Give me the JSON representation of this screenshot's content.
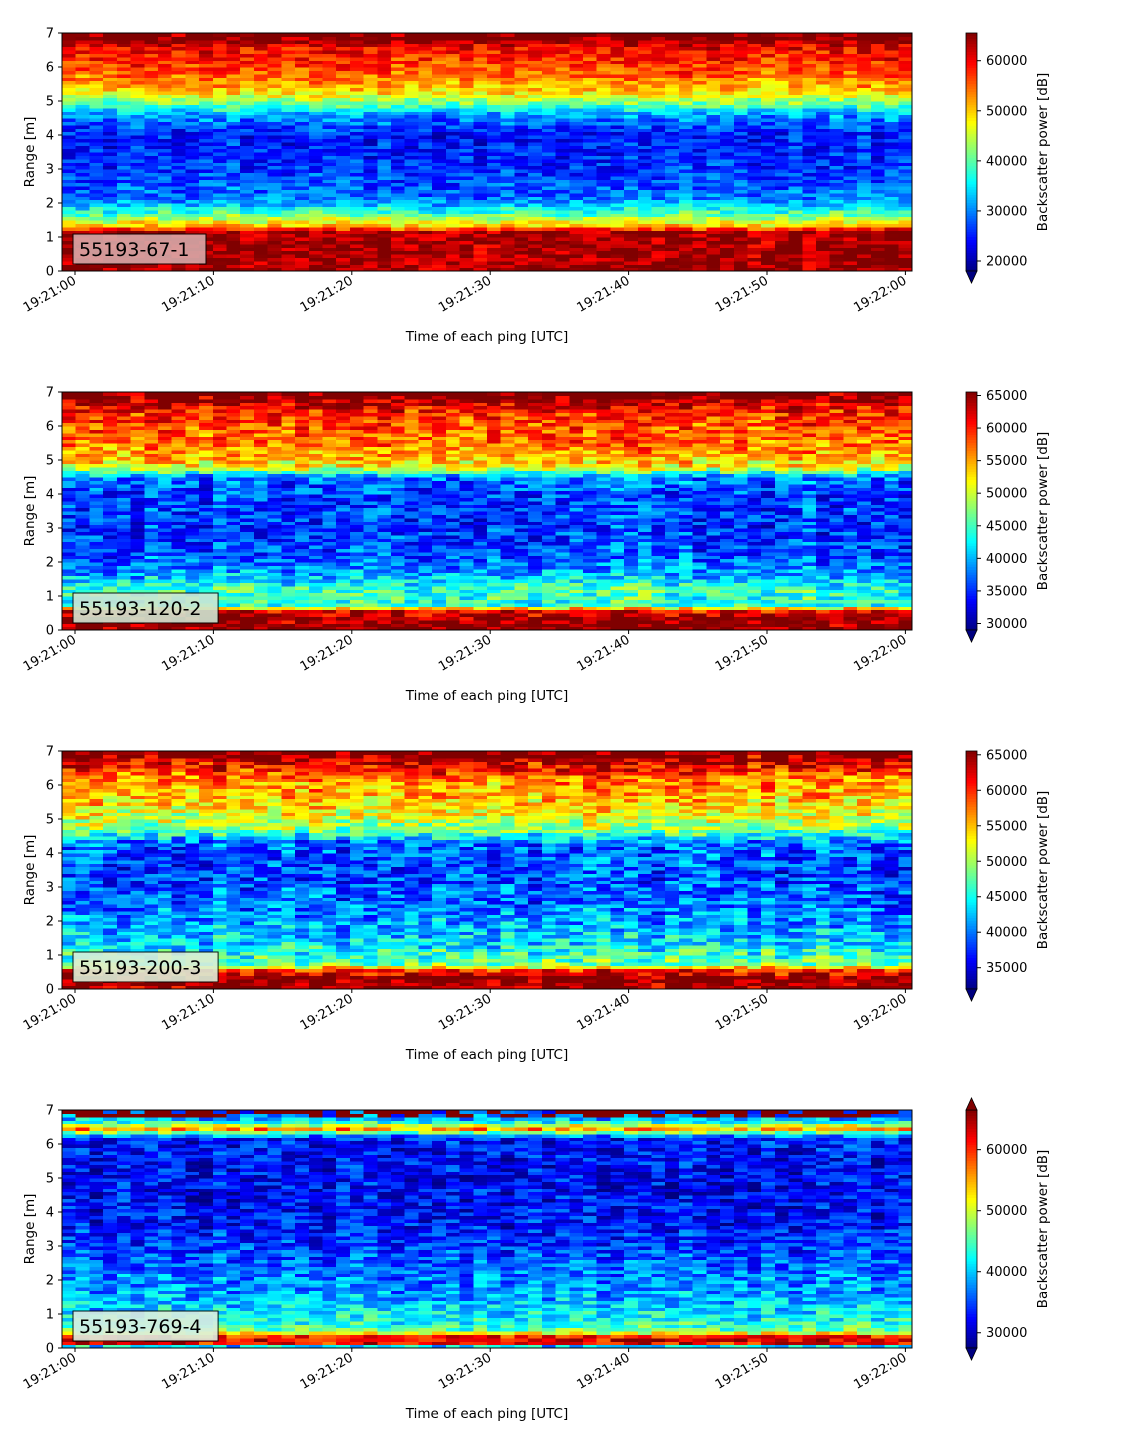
{
  "figure": {
    "background": "#ffffff"
  },
  "chart_data": [
    {
      "type": "heatmap",
      "panel_label": "55193-67-1",
      "label_box_color": "#d7a9a9",
      "xlabel": "Time of each ping [UTC]",
      "ylabel": "Range [m]",
      "ylim": [
        0,
        7
      ],
      "y_ticks": [
        "0",
        "1",
        "2",
        "3",
        "4",
        "5",
        "6",
        "7"
      ],
      "x_ticks": [
        "19:21:00",
        "19:21:10",
        "19:21:20",
        "19:21:30",
        "19:21:40",
        "19:21:50",
        "19:22:00"
      ],
      "colorbar": {
        "label": "Backscatter power [dB]",
        "range": [
          18000,
          65535
        ],
        "ticks": [
          "20000",
          "30000",
          "40000",
          "50000",
          "60000"
        ],
        "extend": "min"
      },
      "colormap": "jet",
      "profile": [
        {
          "range": 0.0,
          "value": 64000
        },
        {
          "range": 0.25,
          "value": 64000
        },
        {
          "range": 1.15,
          "value": 64000
        },
        {
          "range": 1.35,
          "value": 50000
        },
        {
          "range": 1.6,
          "value": 42000
        },
        {
          "range": 1.8,
          "value": 37000
        },
        {
          "range": 2.1,
          "value": 30000
        },
        {
          "range": 3.0,
          "value": 26000
        },
        {
          "range": 4.0,
          "value": 25000
        },
        {
          "range": 4.6,
          "value": 31000
        },
        {
          "range": 4.9,
          "value": 40000
        },
        {
          "range": 5.3,
          "value": 50000
        },
        {
          "range": 6.0,
          "value": 57000
        },
        {
          "range": 6.6,
          "value": 60000
        },
        {
          "range": 6.8,
          "value": 64500
        },
        {
          "range": 7.0,
          "value": 65000
        }
      ]
    },
    {
      "type": "heatmap",
      "panel_label": "55193-120-2",
      "label_box_color": "#cfe6d2",
      "xlabel": "Time of each ping [UTC]",
      "ylabel": "Range [m]",
      "ylim": [
        0,
        7
      ],
      "y_ticks": [
        "0",
        "1",
        "2",
        "3",
        "4",
        "5",
        "6",
        "7"
      ],
      "x_ticks": [
        "19:21:00",
        "19:21:10",
        "19:21:20",
        "19:21:30",
        "19:21:40",
        "19:21:50",
        "19:22:00"
      ],
      "colorbar": {
        "label": "Backscatter power [dB]",
        "range": [
          29000,
          65535
        ],
        "ticks": [
          "30000",
          "35000",
          "40000",
          "45000",
          "50000",
          "55000",
          "60000",
          "65000"
        ],
        "extend": "min"
      },
      "colormap": "jet",
      "profile": [
        {
          "range": 0.0,
          "value": 65000
        },
        {
          "range": 0.35,
          "value": 65000
        },
        {
          "range": 0.55,
          "value": 62000
        },
        {
          "range": 0.75,
          "value": 44000
        },
        {
          "range": 1.2,
          "value": 45000
        },
        {
          "range": 1.6,
          "value": 40000
        },
        {
          "range": 2.2,
          "value": 36500
        },
        {
          "range": 3.0,
          "value": 35500
        },
        {
          "range": 4.0,
          "value": 36000
        },
        {
          "range": 4.5,
          "value": 38000
        },
        {
          "range": 4.8,
          "value": 52000
        },
        {
          "range": 5.5,
          "value": 57000
        },
        {
          "range": 6.3,
          "value": 59000
        },
        {
          "range": 6.7,
          "value": 63000
        },
        {
          "range": 7.0,
          "value": 65000
        }
      ]
    },
    {
      "type": "heatmap",
      "panel_label": "55193-200-3",
      "label_box_color": "#dbeed8",
      "xlabel": "Time of each ping [UTC]",
      "ylabel": "Range [m]",
      "ylim": [
        0,
        7
      ],
      "y_ticks": [
        "0",
        "1",
        "2",
        "3",
        "4",
        "5",
        "6",
        "7"
      ],
      "x_ticks": [
        "19:21:00",
        "19:21:10",
        "19:21:20",
        "19:21:30",
        "19:21:40",
        "19:21:50",
        "19:22:00"
      ],
      "colorbar": {
        "label": "Backscatter power [dB]",
        "range": [
          32000,
          65535
        ],
        "ticks": [
          "35000",
          "40000",
          "45000",
          "50000",
          "55000",
          "60000",
          "65000"
        ],
        "extend": "min"
      },
      "colormap": "jet",
      "profile": [
        {
          "range": 0.0,
          "value": 65000
        },
        {
          "range": 0.35,
          "value": 65000
        },
        {
          "range": 0.55,
          "value": 60000
        },
        {
          "range": 0.75,
          "value": 48000
        },
        {
          "range": 1.3,
          "value": 44000
        },
        {
          "range": 1.8,
          "value": 42000
        },
        {
          "range": 2.6,
          "value": 39500
        },
        {
          "range": 3.5,
          "value": 38500
        },
        {
          "range": 4.3,
          "value": 39500
        },
        {
          "range": 4.7,
          "value": 49000
        },
        {
          "range": 5.4,
          "value": 54000
        },
        {
          "range": 6.2,
          "value": 57000
        },
        {
          "range": 6.6,
          "value": 62000
        },
        {
          "range": 7.0,
          "value": 65000
        }
      ]
    },
    {
      "type": "heatmap",
      "panel_label": "55193-769-4",
      "label_box_color": "#dceee0",
      "xlabel": "Time of each ping [UTC]",
      "ylabel": "Range [m]",
      "ylim": [
        0,
        7
      ],
      "y_ticks": [
        "0",
        "1",
        "2",
        "3",
        "4",
        "5",
        "6",
        "7"
      ],
      "x_ticks": [
        "19:21:00",
        "19:21:10",
        "19:21:20",
        "19:21:30",
        "19:21:40",
        "19:21:50",
        "19:22:00"
      ],
      "colorbar": {
        "label": "Backscatter power [dB]",
        "range": [
          27500,
          66500
        ],
        "ticks": [
          "30000",
          "40000",
          "50000",
          "60000"
        ],
        "extend": "both"
      },
      "colormap": "jet",
      "profile": [
        {
          "range": 0.0,
          "value": 30000
        },
        {
          "range": 0.15,
          "value": 62000
        },
        {
          "range": 0.32,
          "value": 64000
        },
        {
          "range": 0.5,
          "value": 46000
        },
        {
          "range": 0.9,
          "value": 42000
        },
        {
          "range": 1.6,
          "value": 38500
        },
        {
          "range": 2.5,
          "value": 36000
        },
        {
          "range": 3.5,
          "value": 33000
        },
        {
          "range": 4.5,
          "value": 32000
        },
        {
          "range": 5.5,
          "value": 32500
        },
        {
          "range": 6.2,
          "value": 33000
        },
        {
          "range": 6.45,
          "value": 56000
        },
        {
          "range": 6.7,
          "value": 40000
        },
        {
          "range": 7.0,
          "value": 34000
        }
      ]
    }
  ]
}
